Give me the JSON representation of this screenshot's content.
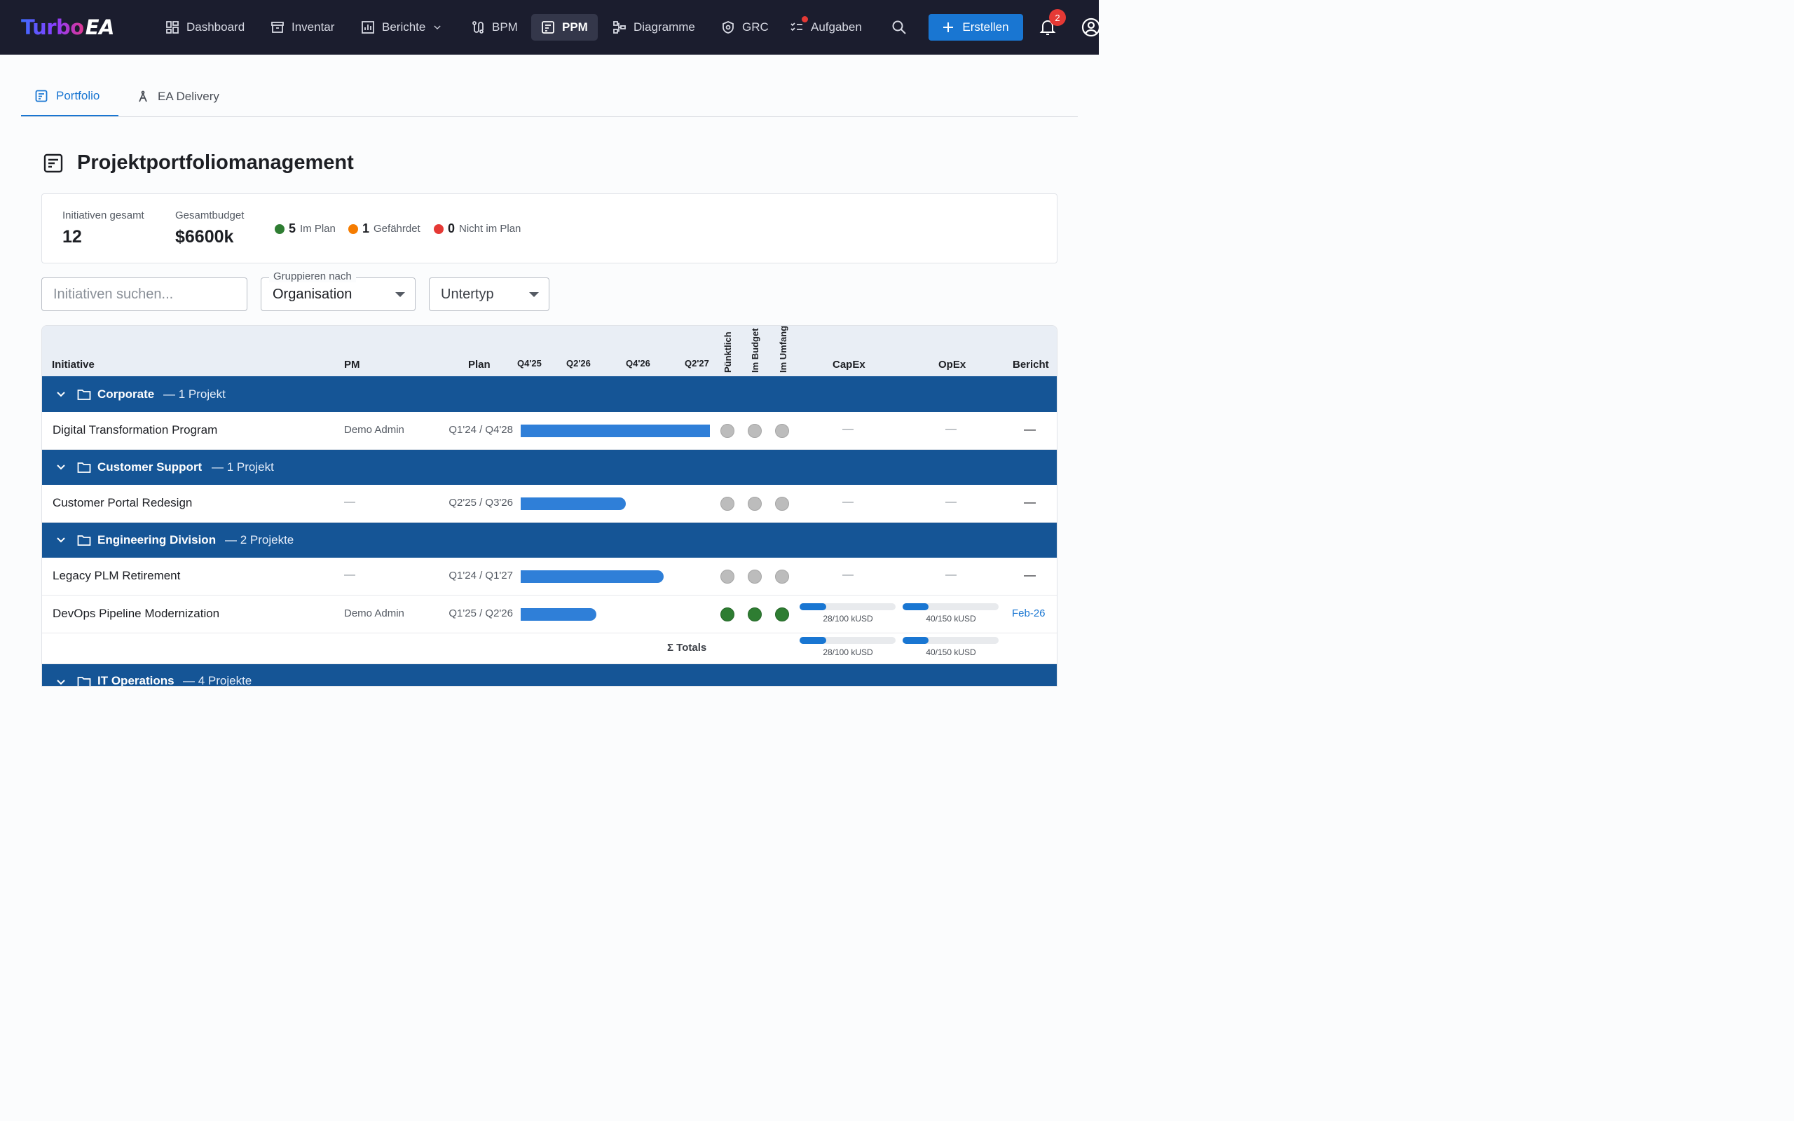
{
  "app": {
    "logo_part1": "Turbo",
    "logo_part2": "EA"
  },
  "nav": {
    "items": [
      {
        "label": "Dashboard",
        "icon": "dashboard-icon"
      },
      {
        "label": "Inventar",
        "icon": "archive-icon"
      },
      {
        "label": "Berichte",
        "icon": "report-icon",
        "dropdown": true
      },
      {
        "label": "BPM",
        "icon": "route-icon"
      },
      {
        "label": "PPM",
        "icon": "ppm-icon",
        "active": true
      },
      {
        "label": "Diagramme",
        "icon": "diagram-icon"
      },
      {
        "label": "GRC",
        "icon": "shield-icon"
      },
      {
        "label": "Aufgaben",
        "icon": "tasks-icon",
        "has_dot": true
      }
    ],
    "create_label": "Erstellen",
    "notifications_count": "2"
  },
  "tabs": [
    {
      "label": "Portfolio",
      "icon": "portfolio-icon",
      "active": true
    },
    {
      "label": "EA Delivery",
      "icon": "compass-icon",
      "active": false
    }
  ],
  "page": {
    "title": "Projektportfoliomanagement"
  },
  "summary": {
    "total_label": "Initiativen gesamt",
    "total_value": "12",
    "budget_label": "Gesamtbudget",
    "budget_value": "$6600k",
    "statuses": [
      {
        "count": "5",
        "label": "Im Plan",
        "color": "#2e7d32"
      },
      {
        "count": "1",
        "label": "Gefährdet",
        "color": "#f57c00"
      },
      {
        "count": "0",
        "label": "Nicht im Plan",
        "color": "#e53935"
      }
    ]
  },
  "filters": {
    "search_placeholder": "Initiativen suchen...",
    "group_label": "Gruppieren nach",
    "group_value": "Organisation",
    "subtype_value": "Untertyp"
  },
  "table": {
    "headers": {
      "initiative": "Initiative",
      "pm": "PM",
      "plan": "Plan",
      "quarters": [
        "Q4'25",
        "Q2'26",
        "Q4'26",
        "Q2'27"
      ],
      "on_time": "Pünktlich",
      "in_budget": "Im Budget",
      "in_scope": "Im Umfang",
      "capex": "CapEx",
      "opex": "OpEx",
      "report": "Bericht"
    },
    "groups": [
      {
        "name": "Corporate",
        "count": "— 1 Projekt",
        "rows": [
          {
            "name": "Digital Transformation Program",
            "pm": "Demo Admin",
            "plan": "Q1'24 / Q4'28",
            "status": [
              "grey",
              "grey",
              "grey"
            ],
            "capex": "—",
            "opex": "—",
            "report": "—",
            "bar_fill": 1.0
          }
        ]
      },
      {
        "name": "Customer Support",
        "count": "— 1 Projekt",
        "rows": [
          {
            "name": "Customer Portal Redesign",
            "pm": "—",
            "plan": "Q2'25 / Q3'26",
            "status": [
              "grey",
              "grey",
              "grey"
            ],
            "capex": "—",
            "opex": "—",
            "report": "—",
            "bar_fill": 0.55
          }
        ]
      },
      {
        "name": "Engineering Division",
        "count": "— 2 Projekte",
        "rows": [
          {
            "name": "Legacy PLM Retirement",
            "pm": "—",
            "plan": "Q1'24 / Q1'27",
            "status": [
              "grey",
              "grey",
              "grey"
            ],
            "capex": "—",
            "opex": "—",
            "report": "—",
            "bar_fill": 0.75
          },
          {
            "name": "DevOps Pipeline Modernization",
            "pm": "Demo Admin",
            "plan": "Q1'25 / Q2'26",
            "status": [
              "green",
              "green",
              "green"
            ],
            "capex": "28/100 kUSD",
            "capex_ratio": 0.28,
            "opex": "40/150 kUSD",
            "opex_ratio": 0.27,
            "report": "Feb-26",
            "bar_fill": 0.4
          }
        ],
        "totals_label": "Σ Totals",
        "totals_capex": "28/100 kUSD",
        "totals_capex_ratio": 0.28,
        "totals_opex": "40/150 kUSD",
        "totals_opex_ratio": 0.27
      },
      {
        "name": "IT Operations",
        "count": "— 4 Projekte",
        "rows": []
      }
    ]
  }
}
